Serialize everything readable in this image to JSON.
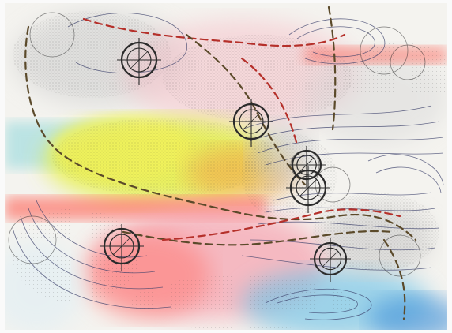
{
  "artwork": {
    "colors": {
      "paper": "#f4f3ef",
      "ink": "#2b2b2b",
      "coral": "#ff6a5e",
      "pink": "#f6a6b2",
      "lime": "#d8f03a",
      "yellow": "#f3f25a",
      "orange": "#f7a24a",
      "sky": "#6fc2e6",
      "blue": "#3d8fd8",
      "teal": "#77d0d6",
      "grey": "#9a9a9a",
      "dash_dark": "#5b4a2a",
      "dash_red": "#b5302a",
      "contour": "#3a3f6a"
    },
    "marks": [
      {
        "name": "crosshair-symbol-top-left"
      },
      {
        "name": "crosshair-symbol-upper-center"
      },
      {
        "name": "crosshair-symbol-center-right-a"
      },
      {
        "name": "crosshair-symbol-center-right-b"
      },
      {
        "name": "crosshair-symbol-lower-left"
      },
      {
        "name": "crosshair-symbol-lower-right"
      }
    ]
  }
}
